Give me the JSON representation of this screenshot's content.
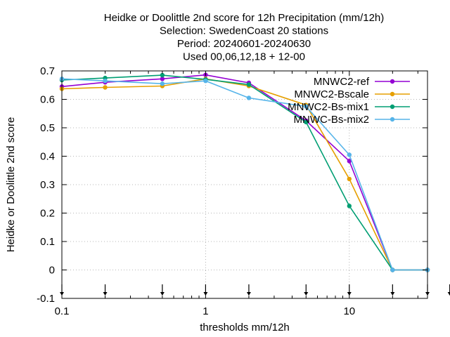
{
  "chart_data": {
    "type": "line",
    "title_lines": [
      "Heidke or Doolittle 2nd score  for 12h Precipitation (mm/12h)",
      "Selection: SwedenCoast      20 stations",
      "Period: 20240601-20240630",
      "Used 00,06,12,18 + 12-00"
    ],
    "xlabel": "thresholds mm/12h",
    "ylabel": "Heidke or Doolittle 2nd score",
    "xscale": "log",
    "xlim": [
      0.1,
      35
    ],
    "ylim": [
      -0.1,
      0.7
    ],
    "xticks": [
      {
        "value": 0.1,
        "label": "0.1"
      },
      {
        "value": 1,
        "label": "1"
      },
      {
        "value": 10,
        "label": "10"
      }
    ],
    "yticks": [
      {
        "value": -0.1,
        "label": "-0.1"
      },
      {
        "value": 0,
        "label": "0"
      },
      {
        "value": 0.1,
        "label": "0.1"
      },
      {
        "value": 0.2,
        "label": "0.2"
      },
      {
        "value": 0.3,
        "label": "0.3"
      },
      {
        "value": 0.4,
        "label": "0.4"
      },
      {
        "value": 0.5,
        "label": "0.5"
      },
      {
        "value": 0.6,
        "label": "0.6"
      },
      {
        "value": 0.7,
        "label": "0.7"
      }
    ],
    "grid": true,
    "legend_position": "top-right",
    "marker_thresholds": [
      0.1,
      0.2,
      0.5,
      1,
      2,
      5,
      10,
      20,
      35,
      50
    ],
    "x": [
      0.1,
      0.2,
      0.5,
      1,
      2,
      5,
      10,
      20,
      35
    ],
    "series": [
      {
        "name": "MNWC2-ref",
        "color": "#9400d3",
        "values": [
          0.645,
          0.66,
          0.672,
          0.686,
          0.658,
          0.525,
          0.383,
          0.0,
          0.0
        ]
      },
      {
        "name": "MNWC2-Bscale",
        "color": "#e69f00",
        "values": [
          0.637,
          0.642,
          0.647,
          0.672,
          0.647,
          0.58,
          0.32,
          0.0,
          0.0
        ]
      },
      {
        "name": "MNWC2-Bs-mix1",
        "color": "#009e73",
        "values": [
          0.668,
          0.675,
          0.685,
          0.67,
          0.652,
          0.52,
          0.225,
          0.0,
          0.0
        ]
      },
      {
        "name": "MNWC-Bs-mix2",
        "color": "#56b4e9",
        "values": [
          0.672,
          0.665,
          0.655,
          0.665,
          0.605,
          0.575,
          0.405,
          0.0,
          0.0
        ]
      }
    ]
  }
}
